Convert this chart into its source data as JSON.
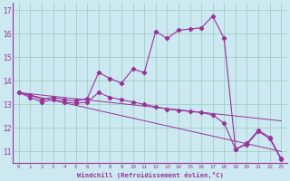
{
  "title": "",
  "xlabel": "Windchill (Refroidissement éolien,°C)",
  "bg_color": "#cce8f0",
  "grid_color": "#99ccbb",
  "line_color": "#993399",
  "xlim": [
    -0.5,
    23.5
  ],
  "ylim": [
    10.5,
    17.3
  ],
  "yticks": [
    11,
    12,
    13,
    14,
    15,
    16,
    17
  ],
  "xticks": [
    0,
    1,
    2,
    3,
    4,
    5,
    6,
    7,
    8,
    9,
    10,
    11,
    12,
    13,
    14,
    15,
    16,
    17,
    18,
    19,
    20,
    21,
    22,
    23
  ],
  "series": [
    {
      "x": [
        0,
        1,
        2,
        3,
        4,
        5,
        6,
        7,
        8,
        9,
        10,
        11,
        12,
        13,
        14,
        15,
        16,
        17,
        18,
        19,
        20,
        21,
        22,
        23
      ],
      "y": [
        13.5,
        13.4,
        13.2,
        13.3,
        13.2,
        13.15,
        13.25,
        14.35,
        14.1,
        13.9,
        14.5,
        14.35,
        16.1,
        15.8,
        16.15,
        16.2,
        16.25,
        16.75,
        15.8,
        11.1,
        11.35,
        11.9,
        11.6,
        10.7
      ]
    },
    {
      "x": [
        0,
        1,
        2,
        3,
        4,
        5,
        6,
        7,
        8,
        9,
        10,
        11,
        12,
        13,
        14,
        15,
        16,
        17,
        18,
        19,
        20,
        21,
        22,
        23
      ],
      "y": [
        13.5,
        13.3,
        13.1,
        13.2,
        13.1,
        13.05,
        13.1,
        13.5,
        13.3,
        13.2,
        13.1,
        13.0,
        12.9,
        12.8,
        12.75,
        12.7,
        12.65,
        12.55,
        12.2,
        11.1,
        11.3,
        11.85,
        11.55,
        10.65
      ]
    },
    {
      "x": [
        0,
        23
      ],
      "y": [
        13.5,
        12.3
      ]
    },
    {
      "x": [
        0,
        23
      ],
      "y": [
        13.5,
        11.0
      ]
    }
  ]
}
